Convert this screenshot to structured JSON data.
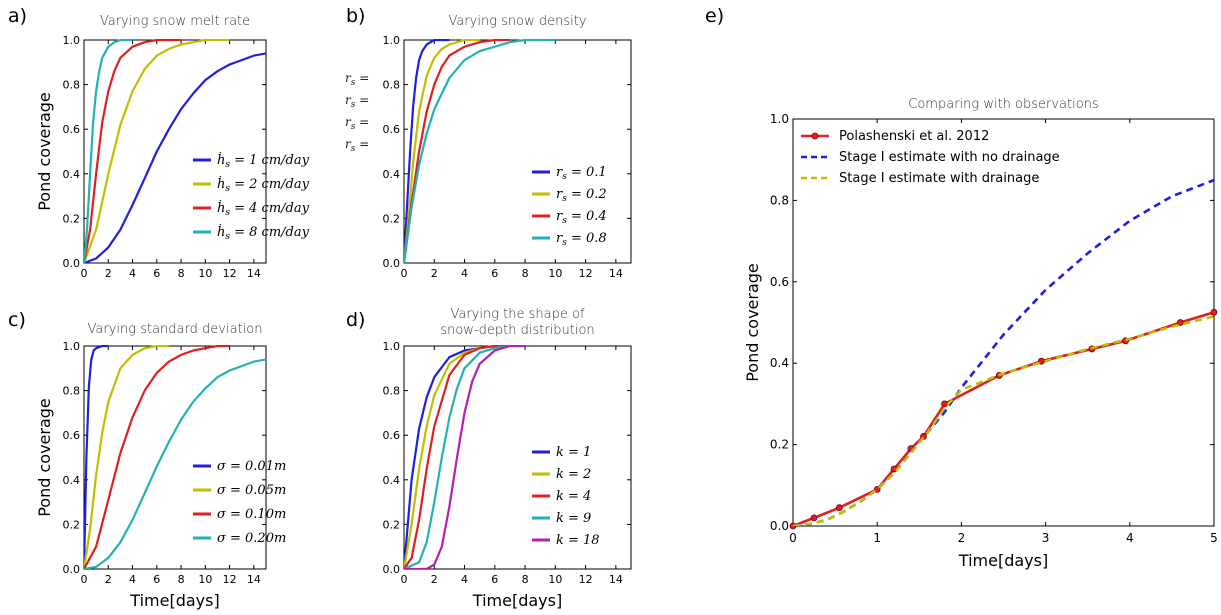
{
  "chart_data": [
    {
      "panel": "a)",
      "type": "line",
      "title": "Varying snow melt rate",
      "xlabel": "",
      "ylabel": "Pond coverage",
      "xlim": [
        0,
        15
      ],
      "ylim": [
        0,
        1.0
      ],
      "xticks": [
        "0",
        "2",
        "4",
        "6",
        "8",
        "10",
        "12",
        "14"
      ],
      "yticks": [
        "0.0",
        "0.2",
        "0.4",
        "0.6",
        "0.8",
        "1.0"
      ],
      "legend_position": "lower-right",
      "series": [
        {
          "name": "ḣs = 1 cm/day",
          "color": "#1f1fe0",
          "x": [
            0,
            1,
            2,
            3,
            4,
            5,
            6,
            7,
            8,
            9,
            10,
            11,
            12,
            13,
            14,
            15
          ],
          "y": [
            0,
            0.02,
            0.07,
            0.15,
            0.26,
            0.38,
            0.5,
            0.6,
            0.69,
            0.76,
            0.82,
            0.86,
            0.89,
            0.91,
            0.93,
            0.94
          ]
        },
        {
          "name": "ḣs = 2 cm/day",
          "color": "#bfbf00",
          "x": [
            0,
            1,
            2,
            3,
            4,
            5,
            6,
            7,
            8,
            9,
            10,
            11,
            12
          ],
          "y": [
            0,
            0.15,
            0.4,
            0.62,
            0.77,
            0.87,
            0.93,
            0.96,
            0.98,
            0.99,
            1.0,
            1.0,
            1.0
          ]
        },
        {
          "name": "ḣs = 4 cm/day",
          "color": "#e01f1f",
          "x": [
            0,
            0.5,
            1,
            1.5,
            2,
            2.5,
            3,
            4,
            5,
            6,
            8
          ],
          "y": [
            0,
            0.15,
            0.4,
            0.63,
            0.77,
            0.86,
            0.92,
            0.97,
            0.99,
            1.0,
            1.0
          ]
        },
        {
          "name": "ḣs = 8 cm/day",
          "color": "#22b2b2",
          "x": [
            0,
            0.25,
            0.5,
            0.75,
            1,
            1.25,
            1.5,
            2,
            2.5,
            3,
            4
          ],
          "y": [
            0,
            0.15,
            0.4,
            0.63,
            0.77,
            0.86,
            0.92,
            0.97,
            0.99,
            1.0,
            1.0
          ]
        }
      ]
    },
    {
      "panel": "b)",
      "type": "line",
      "title": "Varying snow density",
      "xlabel": "",
      "ylabel": "",
      "xlim": [
        0,
        15
      ],
      "ylim": [
        0,
        1.0
      ],
      "xticks": [
        "0",
        "2",
        "4",
        "6",
        "8",
        "10",
        "12",
        "14"
      ],
      "yticks": [
        "0.0",
        "0.2",
        "0.4",
        "0.6",
        "0.8",
        "1.0"
      ],
      "legend_position": "lower-right",
      "stray_labels": [
        "rs =",
        "rs =",
        "rs =",
        "rs ="
      ],
      "series": [
        {
          "name": "rs = 0.1",
          "color": "#1f1fe0",
          "x": [
            0,
            0.2,
            0.4,
            0.6,
            0.8,
            1,
            1.2,
            1.5,
            2,
            3
          ],
          "y": [
            0,
            0.25,
            0.5,
            0.7,
            0.83,
            0.91,
            0.95,
            0.98,
            1.0,
            1.0
          ]
        },
        {
          "name": "rs = 0.2",
          "color": "#bfbf00",
          "x": [
            0,
            0.3,
            0.6,
            1,
            1.5,
            2,
            2.5,
            3,
            4,
            5
          ],
          "y": [
            0,
            0.2,
            0.45,
            0.68,
            0.84,
            0.92,
            0.96,
            0.98,
            1.0,
            1.0
          ]
        },
        {
          "name": "rs = 0.4",
          "color": "#e01f1f",
          "x": [
            0,
            0.5,
            1,
            1.5,
            2,
            2.5,
            3,
            4,
            5,
            6,
            7
          ],
          "y": [
            0,
            0.27,
            0.5,
            0.68,
            0.8,
            0.88,
            0.93,
            0.97,
            0.99,
            1.0,
            1.0
          ]
        },
        {
          "name": "rs = 0.8",
          "color": "#22b2b2",
          "x": [
            0,
            0.5,
            1,
            1.5,
            2,
            3,
            4,
            5,
            6,
            7,
            8,
            10
          ],
          "y": [
            0,
            0.25,
            0.44,
            0.58,
            0.69,
            0.83,
            0.91,
            0.95,
            0.97,
            0.99,
            1.0,
            1.0
          ]
        }
      ]
    },
    {
      "panel": "c)",
      "type": "line",
      "title": "Varying standard deviation",
      "xlabel": "Time[days]",
      "ylabel": "Pond coverage",
      "xlim": [
        0,
        15
      ],
      "ylim": [
        0,
        1.0
      ],
      "xticks": [
        "0",
        "2",
        "4",
        "6",
        "8",
        "10",
        "12",
        "14"
      ],
      "yticks": [
        "0.0",
        "0.2",
        "0.4",
        "0.6",
        "0.8",
        "1.0"
      ],
      "legend_position": "lower-right",
      "series": [
        {
          "name": "σ = 0.01m",
          "color": "#1f1fe0",
          "x": [
            0,
            0.2,
            0.4,
            0.6,
            0.8,
            1,
            1.5,
            2
          ],
          "y": [
            0,
            0.5,
            0.82,
            0.94,
            0.98,
            0.99,
            1.0,
            1.0
          ]
        },
        {
          "name": "σ = 0.05m",
          "color": "#bfbf00",
          "x": [
            0,
            0.5,
            1,
            1.5,
            2,
            3,
            4,
            5,
            6,
            7
          ],
          "y": [
            0,
            0.18,
            0.42,
            0.61,
            0.75,
            0.9,
            0.96,
            0.99,
            1.0,
            1.0
          ]
        },
        {
          "name": "σ = 0.10m",
          "color": "#e01f1f",
          "x": [
            0,
            1,
            2,
            3,
            4,
            5,
            6,
            7,
            8,
            9,
            10,
            11,
            12
          ],
          "y": [
            0,
            0.1,
            0.31,
            0.52,
            0.68,
            0.8,
            0.88,
            0.93,
            0.96,
            0.98,
            0.99,
            1.0,
            1.0
          ]
        },
        {
          "name": "σ = 0.20m",
          "color": "#22b2b2",
          "x": [
            0,
            1,
            2,
            3,
            4,
            5,
            6,
            7,
            8,
            9,
            10,
            11,
            12,
            13,
            14,
            15
          ],
          "y": [
            0,
            0.01,
            0.05,
            0.12,
            0.22,
            0.34,
            0.46,
            0.57,
            0.67,
            0.75,
            0.81,
            0.86,
            0.89,
            0.91,
            0.93,
            0.94
          ]
        }
      ]
    },
    {
      "panel": "d)",
      "type": "line",
      "title": "Varying the shape of snow-depth distribution",
      "title_lines": [
        "Varying the shape of",
        "snow-depth distribution"
      ],
      "xlabel": "Time[days]",
      "ylabel": "",
      "xlim": [
        0,
        15
      ],
      "ylim": [
        0,
        1.0
      ],
      "xticks": [
        "0",
        "2",
        "4",
        "6",
        "8",
        "10",
        "12",
        "14"
      ],
      "yticks": [
        "0.0",
        "0.2",
        "0.4",
        "0.6",
        "0.8",
        "1.0"
      ],
      "legend_position": "lower-right",
      "series": [
        {
          "name": "k = 1",
          "color": "#1f1fe0",
          "x": [
            0,
            0.5,
            1,
            1.5,
            2,
            3,
            4,
            5,
            6,
            7
          ],
          "y": [
            0,
            0.4,
            0.63,
            0.77,
            0.86,
            0.95,
            0.98,
            0.99,
            1.0,
            1.0
          ]
        },
        {
          "name": "k = 2",
          "color": "#bfbf00",
          "x": [
            0,
            0.5,
            1,
            1.5,
            2,
            3,
            4,
            5,
            6,
            7
          ],
          "y": [
            0,
            0.2,
            0.45,
            0.64,
            0.78,
            0.92,
            0.97,
            0.99,
            1.0,
            1.0
          ]
        },
        {
          "name": "k = 4",
          "color": "#e01f1f",
          "x": [
            0,
            0.5,
            1,
            1.5,
            2,
            3,
            4,
            5,
            6,
            7
          ],
          "y": [
            0,
            0.05,
            0.22,
            0.45,
            0.64,
            0.87,
            0.96,
            0.99,
            1.0,
            1.0
          ]
        },
        {
          "name": "k = 9",
          "color": "#22b2b2",
          "x": [
            0,
            1,
            1.5,
            2,
            2.5,
            3,
            3.5,
            4,
            5,
            6,
            7
          ],
          "y": [
            0,
            0.03,
            0.12,
            0.3,
            0.5,
            0.68,
            0.81,
            0.9,
            0.97,
            0.99,
            1.0
          ]
        },
        {
          "name": "k = 18",
          "color": "#b21fb2",
          "x": [
            0,
            1.5,
            2,
            2.5,
            3,
            3.5,
            4,
            4.5,
            5,
            6,
            7,
            8
          ],
          "y": [
            0,
            0.0,
            0.02,
            0.1,
            0.28,
            0.5,
            0.7,
            0.84,
            0.92,
            0.98,
            1.0,
            1.0
          ]
        }
      ]
    },
    {
      "panel": "e)",
      "type": "line",
      "title": "Comparing with observations",
      "xlabel": "Time[days]",
      "ylabel": "Pond coverage",
      "xlim": [
        0,
        5
      ],
      "ylim": [
        0,
        1.0
      ],
      "xticks": [
        "0",
        "1",
        "2",
        "3",
        "4",
        "5"
      ],
      "yticks": [
        "0.0",
        "0.2",
        "0.4",
        "0.6",
        "0.8",
        "1.0"
      ],
      "legend_position": "upper-left",
      "series": [
        {
          "name": "Polashenski et al. 2012",
          "color": "#e01f1f",
          "style": "solid-markers",
          "x": [
            0,
            0.25,
            0.55,
            1.0,
            1.2,
            1.4,
            1.55,
            1.8,
            2.45,
            2.95,
            3.55,
            3.95,
            4.6,
            5.0
          ],
          "y": [
            0,
            0.02,
            0.045,
            0.09,
            0.14,
            0.19,
            0.22,
            0.3,
            0.37,
            0.405,
            0.435,
            0.455,
            0.5,
            0.525
          ]
        },
        {
          "name": "Stage I estimate with no drainage",
          "color": "#1f1fe0",
          "style": "dashed",
          "x": [
            0,
            0.2,
            0.4,
            0.6,
            0.8,
            1.0,
            1.2,
            1.4,
            1.6,
            1.8,
            2.0,
            2.5,
            3.0,
            3.5,
            4.0,
            4.5,
            5.0
          ],
          "y": [
            0,
            0.005,
            0.015,
            0.035,
            0.06,
            0.09,
            0.13,
            0.18,
            0.23,
            0.28,
            0.34,
            0.47,
            0.58,
            0.67,
            0.75,
            0.81,
            0.85
          ]
        },
        {
          "name": "Stage I estimate with drainage",
          "color": "#bfbf00",
          "style": "dashed",
          "x": [
            0,
            0.2,
            0.4,
            0.6,
            0.8,
            1.0,
            1.2,
            1.4,
            1.6,
            1.8,
            2.0,
            2.5,
            3.0,
            3.5,
            4.0,
            4.5,
            5.0
          ],
          "y": [
            0,
            0.005,
            0.015,
            0.035,
            0.06,
            0.09,
            0.13,
            0.18,
            0.23,
            0.29,
            0.335,
            0.375,
            0.405,
            0.435,
            0.46,
            0.49,
            0.515
          ]
        }
      ]
    }
  ]
}
